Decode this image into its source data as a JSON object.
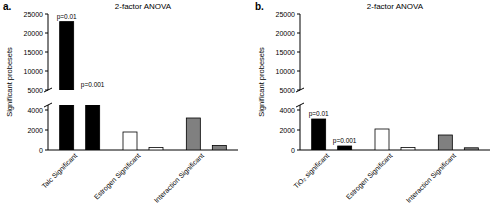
{
  "chart_data": [
    {
      "type": "bar",
      "panel_label": "a.",
      "title": "2-factor ANOVA",
      "y_label": "Significant probesets",
      "categories": [
        "Talc Significant",
        "Estrogen Significant",
        "Interaction Significant"
      ],
      "series": [
        {
          "values": [
            23000,
            1800,
            3200
          ],
          "colors": [
            "#000000",
            "#ffffff",
            "#808080"
          ]
        },
        {
          "values": [
            5000,
            250,
            450
          ],
          "colors": [
            "#000000",
            "#ffffff",
            "#808080"
          ]
        }
      ],
      "annotations": [
        "p=0.01",
        "p=0.001"
      ],
      "ylim": [
        [
          0,
          4500
        ],
        [
          5000,
          25000
        ]
      ],
      "yticks": [
        0,
        2000,
        4000,
        5000,
        10000,
        15000,
        20000,
        25000
      ]
    },
    {
      "type": "bar",
      "panel_label": "b.",
      "title": "2-factor ANOVA",
      "y_label": "Significant probesets",
      "categories": [
        "TiO₂ significant",
        "Estrogen Significant",
        "Interaction Significant"
      ],
      "series": [
        {
          "values": [
            3100,
            2100,
            1500
          ],
          "colors": [
            "#000000",
            "#ffffff",
            "#808080"
          ]
        },
        {
          "values": [
            400,
            250,
            220
          ],
          "colors": [
            "#000000",
            "#ffffff",
            "#808080"
          ]
        }
      ],
      "annotations": [
        "p=0.01",
        "p=0.001"
      ],
      "ylim": [
        [
          0,
          4500
        ],
        [
          5000,
          25000
        ]
      ],
      "yticks": [
        0,
        2000,
        4000,
        5000,
        10000,
        15000,
        20000,
        25000
      ]
    }
  ]
}
